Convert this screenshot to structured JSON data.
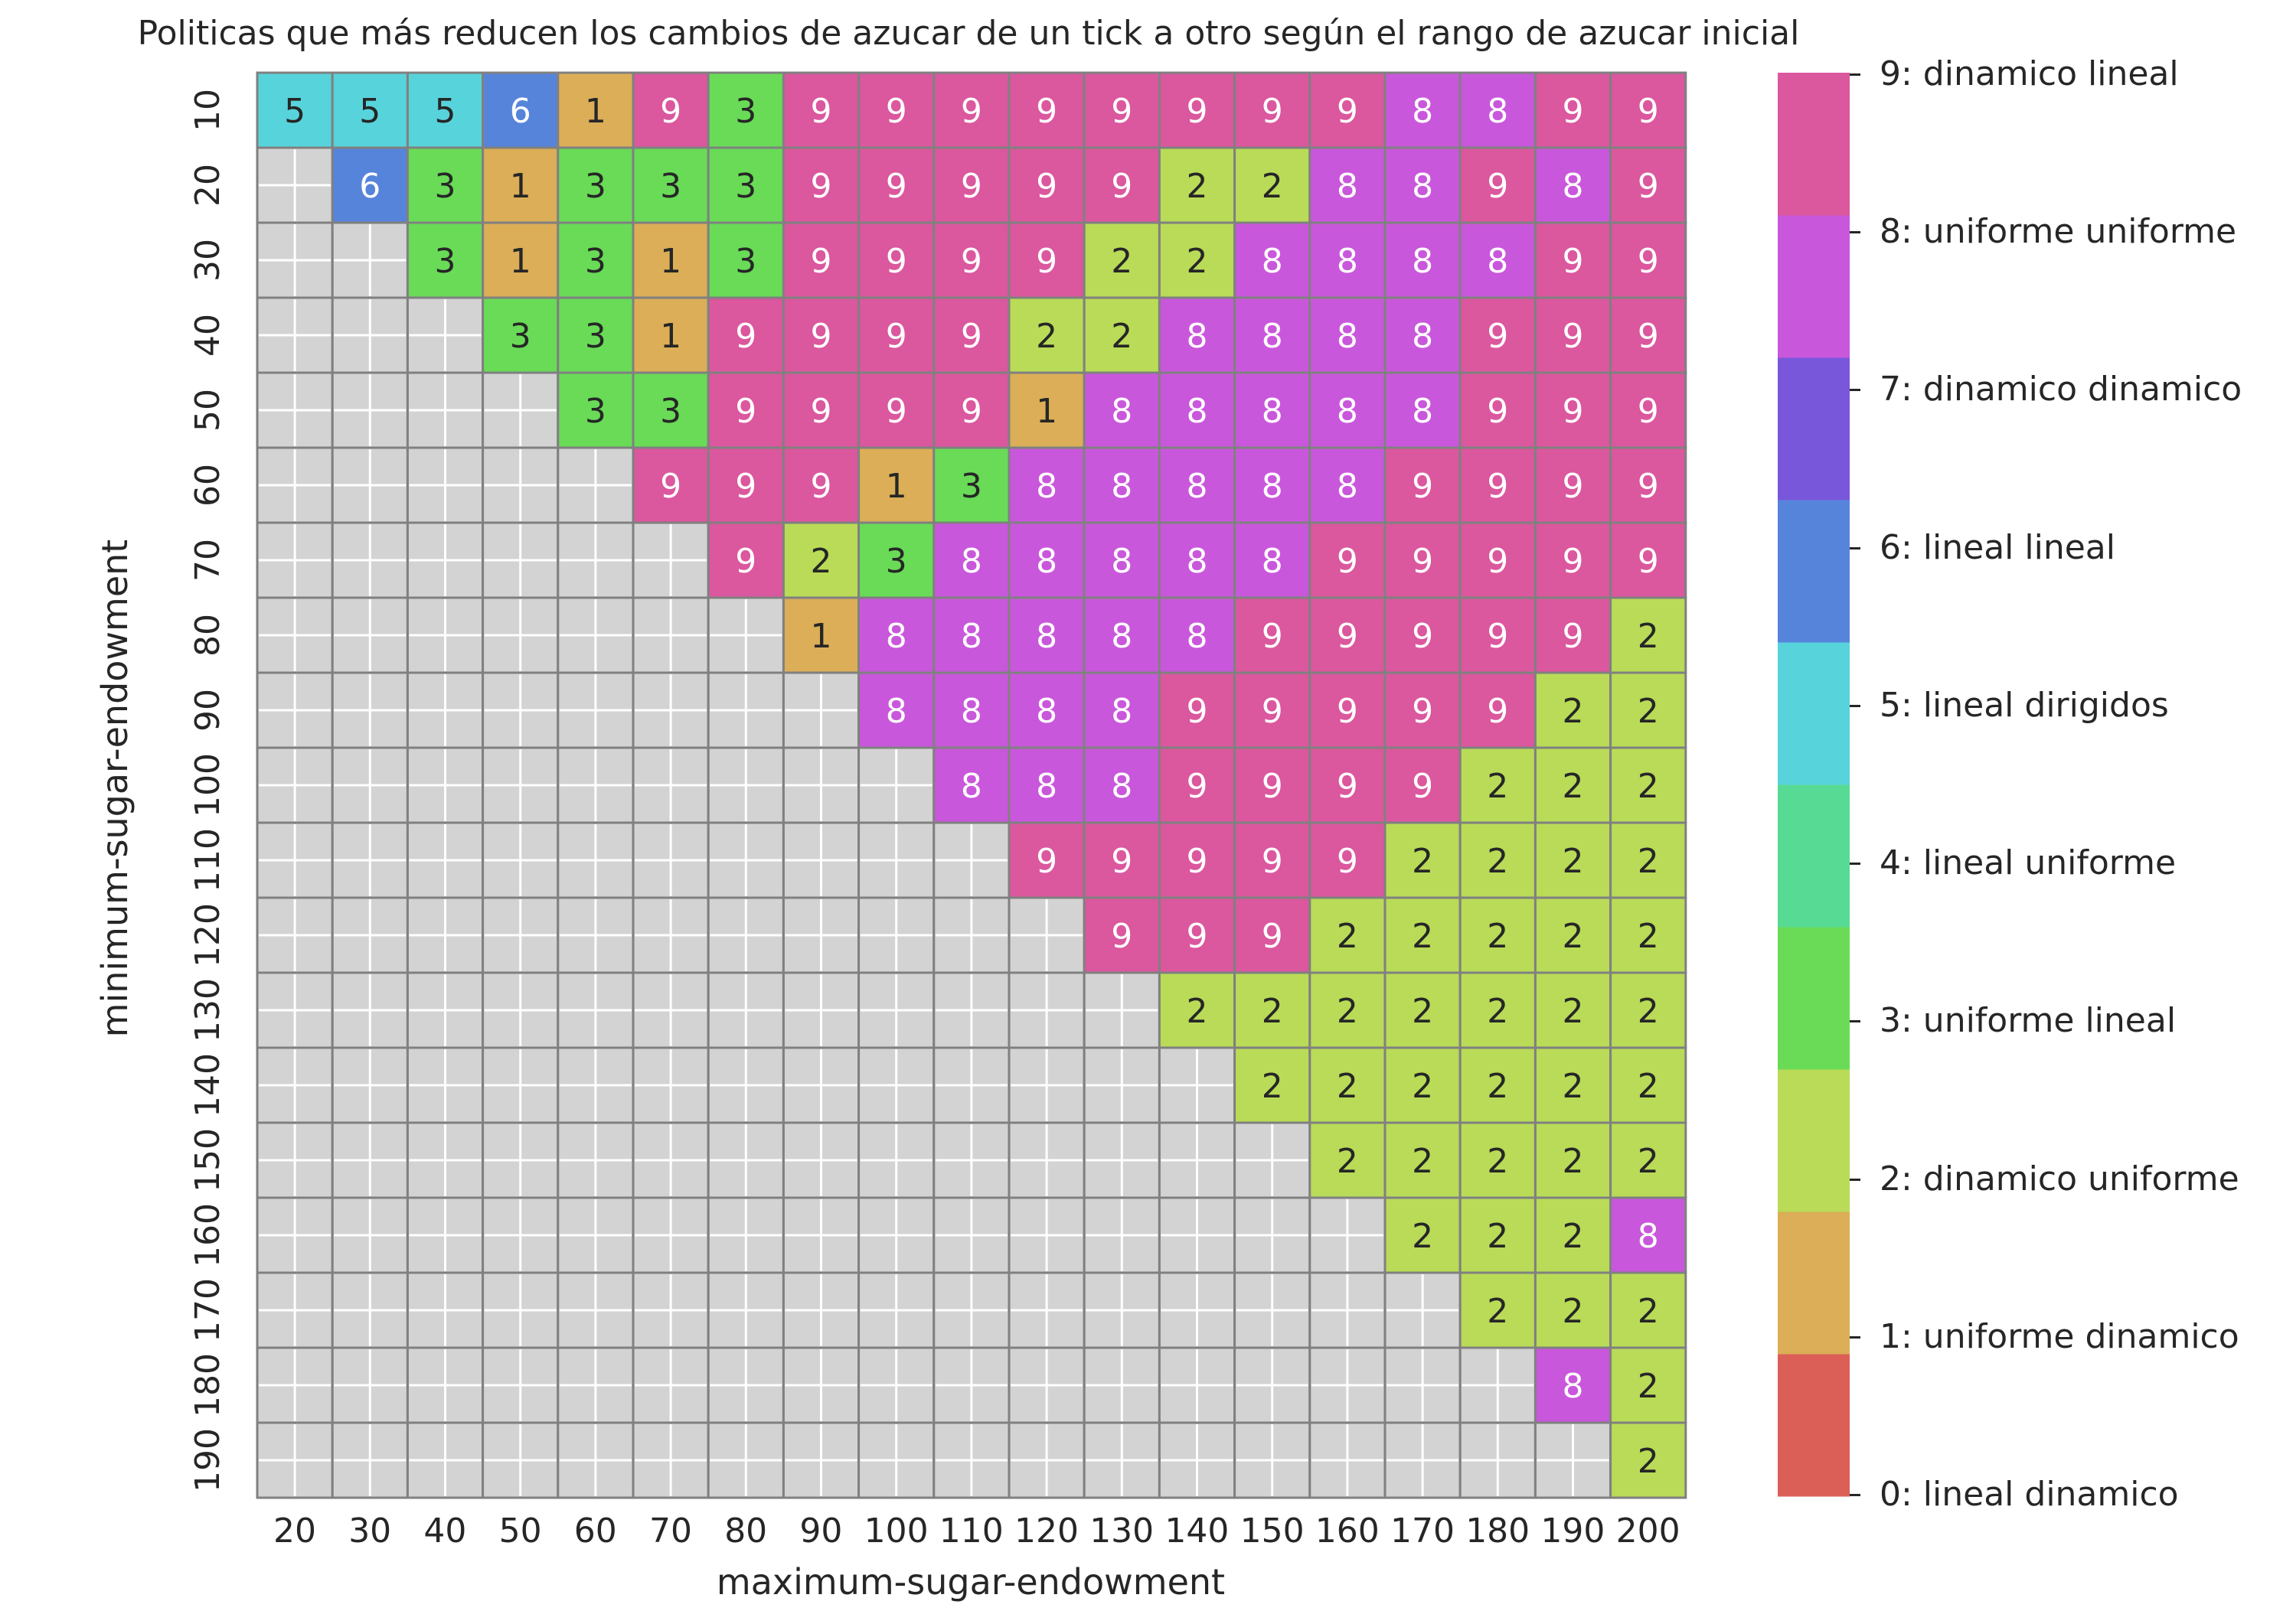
{
  "chart_data": {
    "type": "heatmap",
    "title": "Politicas que más reducen los cambios de azucar de un tick a otro según el rango de azucar inicial",
    "xlabel": "maximum-sugar-endowment",
    "ylabel": "minimum-sugar-endowment",
    "x": [
      "20",
      "30",
      "40",
      "50",
      "60",
      "70",
      "80",
      "90",
      "100",
      "110",
      "120",
      "130",
      "140",
      "150",
      "160",
      "170",
      "180",
      "190",
      "200"
    ],
    "y": [
      "10",
      "20",
      "30",
      "40",
      "50",
      "60",
      "70",
      "80",
      "90",
      "100",
      "110",
      "120",
      "130",
      "140",
      "150",
      "160",
      "170",
      "180",
      "190"
    ],
    "values": [
      [
        5,
        5,
        5,
        6,
        1,
        9,
        3,
        9,
        9,
        9,
        9,
        9,
        9,
        9,
        9,
        8,
        8,
        9,
        9
      ],
      [
        null,
        6,
        3,
        1,
        3,
        3,
        3,
        9,
        9,
        9,
        9,
        9,
        2,
        2,
        8,
        8,
        9,
        8,
        9
      ],
      [
        null,
        null,
        3,
        1,
        3,
        1,
        3,
        9,
        9,
        9,
        9,
        2,
        2,
        8,
        8,
        8,
        8,
        9,
        9
      ],
      [
        null,
        null,
        null,
        3,
        3,
        1,
        9,
        9,
        9,
        9,
        2,
        2,
        8,
        8,
        8,
        8,
        9,
        9,
        9
      ],
      [
        null,
        null,
        null,
        null,
        3,
        3,
        9,
        9,
        9,
        9,
        1,
        8,
        8,
        8,
        8,
        8,
        9,
        9,
        9
      ],
      [
        null,
        null,
        null,
        null,
        null,
        9,
        9,
        9,
        1,
        3,
        8,
        8,
        8,
        8,
        8,
        9,
        9,
        9,
        9
      ],
      [
        null,
        null,
        null,
        null,
        null,
        null,
        9,
        2,
        3,
        8,
        8,
        8,
        8,
        8,
        9,
        9,
        9,
        9,
        9
      ],
      [
        null,
        null,
        null,
        null,
        null,
        null,
        null,
        1,
        8,
        8,
        8,
        8,
        8,
        9,
        9,
        9,
        9,
        9,
        2
      ],
      [
        null,
        null,
        null,
        null,
        null,
        null,
        null,
        null,
        8,
        8,
        8,
        8,
        9,
        9,
        9,
        9,
        9,
        2,
        2
      ],
      [
        null,
        null,
        null,
        null,
        null,
        null,
        null,
        null,
        null,
        8,
        8,
        8,
        9,
        9,
        9,
        9,
        2,
        2,
        2
      ],
      [
        null,
        null,
        null,
        null,
        null,
        null,
        null,
        null,
        null,
        null,
        9,
        9,
        9,
        9,
        9,
        2,
        2,
        2,
        2
      ],
      [
        null,
        null,
        null,
        null,
        null,
        null,
        null,
        null,
        null,
        null,
        null,
        9,
        9,
        9,
        2,
        2,
        2,
        2,
        2
      ],
      [
        null,
        null,
        null,
        null,
        null,
        null,
        null,
        null,
        null,
        null,
        null,
        null,
        2,
        2,
        2,
        2,
        2,
        2,
        2
      ],
      [
        null,
        null,
        null,
        null,
        null,
        null,
        null,
        null,
        null,
        null,
        null,
        null,
        null,
        2,
        2,
        2,
        2,
        2,
        2
      ],
      [
        null,
        null,
        null,
        null,
        null,
        null,
        null,
        null,
        null,
        null,
        null,
        null,
        null,
        null,
        2,
        2,
        2,
        2,
        2
      ],
      [
        null,
        null,
        null,
        null,
        null,
        null,
        null,
        null,
        null,
        null,
        null,
        null,
        null,
        null,
        null,
        2,
        2,
        2,
        8
      ],
      [
        null,
        null,
        null,
        null,
        null,
        null,
        null,
        null,
        null,
        null,
        null,
        null,
        null,
        null,
        null,
        null,
        2,
        2,
        2
      ],
      [
        null,
        null,
        null,
        null,
        null,
        null,
        null,
        null,
        null,
        null,
        null,
        null,
        null,
        null,
        null,
        null,
        null,
        8,
        2
      ],
      [
        null,
        null,
        null,
        null,
        null,
        null,
        null,
        null,
        null,
        null,
        null,
        null,
        null,
        null,
        null,
        null,
        null,
        null,
        2
      ]
    ],
    "colorbar": {
      "labels": [
        "0: lineal dinamico",
        "1: uniforme dinamico",
        "2: dinamico uniforme",
        "3: uniforme lineal",
        "4: lineal uniforme",
        "5: lineal dirigidos",
        "6: lineal lineal",
        "7: dinamico dinamico",
        "8: uniforme uniforme",
        "9: dinamico lineal"
      ],
      "colors": [
        "#db5f57",
        "#dbae57",
        "#b9db57",
        "#69db57",
        "#57db94",
        "#57d3db",
        "#5784db",
        "#7957db",
        "#c957db",
        "#db579e"
      ]
    },
    "missing_color": "#d3d3d3",
    "cell_border_color": "#808080"
  }
}
